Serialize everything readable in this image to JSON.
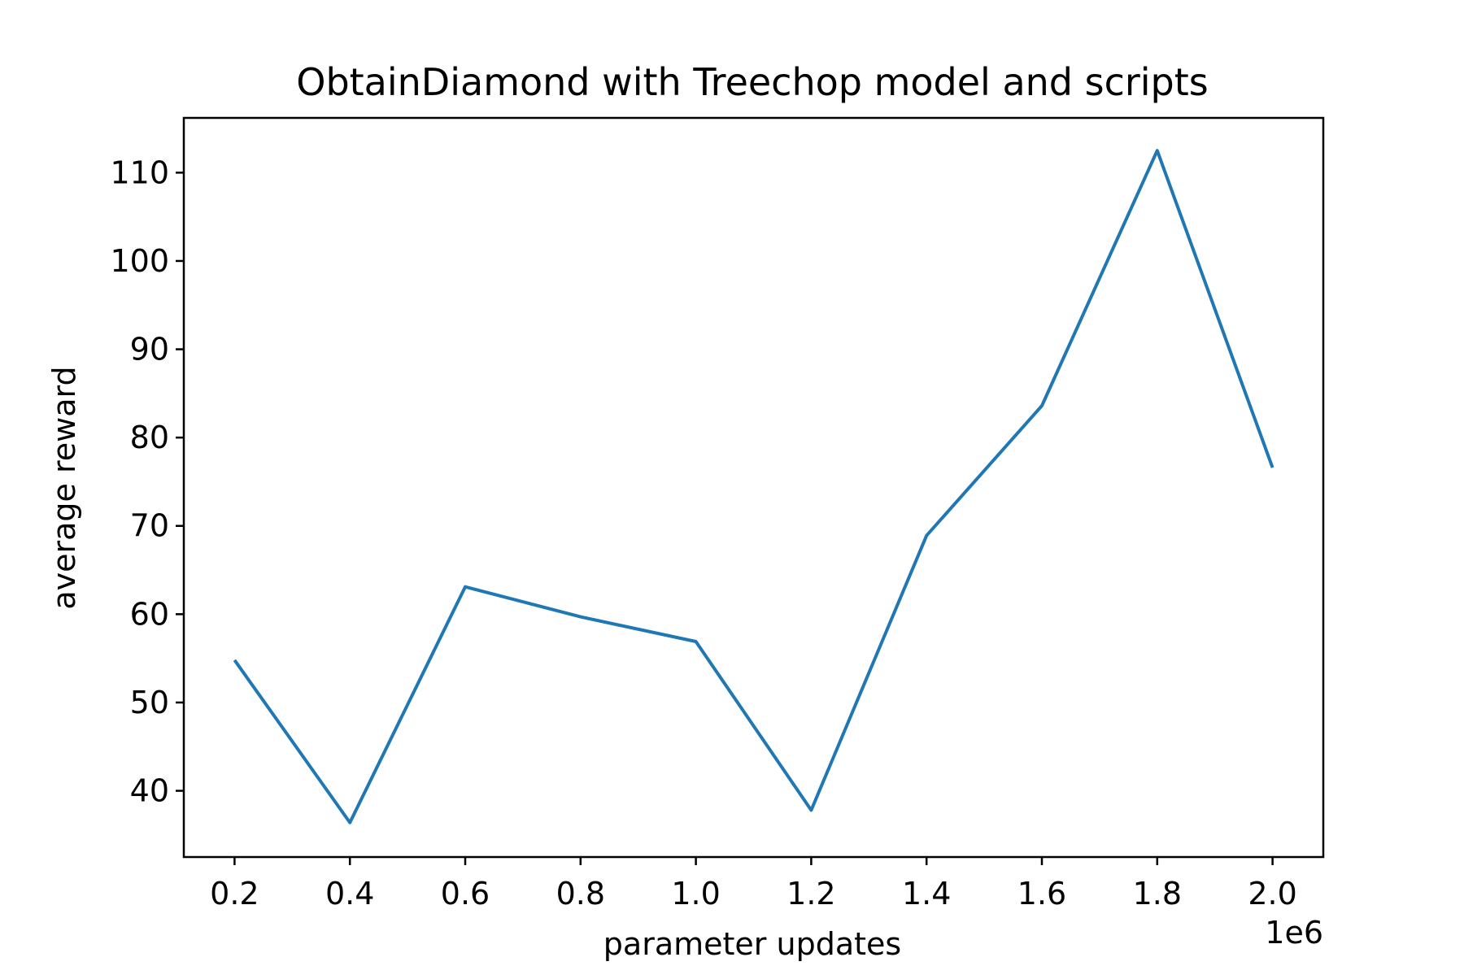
{
  "chart_data": {
    "type": "line",
    "title": "ObtainDiamond with Treechop model and scripts",
    "xlabel": "parameter updates",
    "ylabel": "average reward",
    "x_offset_label": "1e6",
    "x_ticks": [
      0.2,
      0.4,
      0.6,
      0.8,
      1.0,
      1.2,
      1.4,
      1.6,
      1.8,
      2.0
    ],
    "x_tick_labels": [
      "0.2",
      "0.4",
      "0.6",
      "0.8",
      "1.0",
      "1.2",
      "1.4",
      "1.6",
      "1.8",
      "2.0"
    ],
    "y_ticks": [
      40,
      50,
      60,
      70,
      80,
      90,
      100,
      110
    ],
    "y_tick_labels": [
      "40",
      "50",
      "60",
      "70",
      "80",
      "90",
      "100",
      "110"
    ],
    "xlim": [
      0.112,
      2.088
    ],
    "ylim": [
      32.5,
      116.2
    ],
    "grid": false,
    "legend": false,
    "series": [
      {
        "color": "#1f77b4",
        "x": [
          0.2,
          0.4,
          0.6,
          0.8,
          1.0,
          1.2,
          1.4,
          1.6,
          1.8,
          2.0
        ],
        "y": [
          54.8,
          36.4,
          63.1,
          59.7,
          56.9,
          37.8,
          68.9,
          83.6,
          112.5,
          76.6
        ]
      }
    ]
  }
}
